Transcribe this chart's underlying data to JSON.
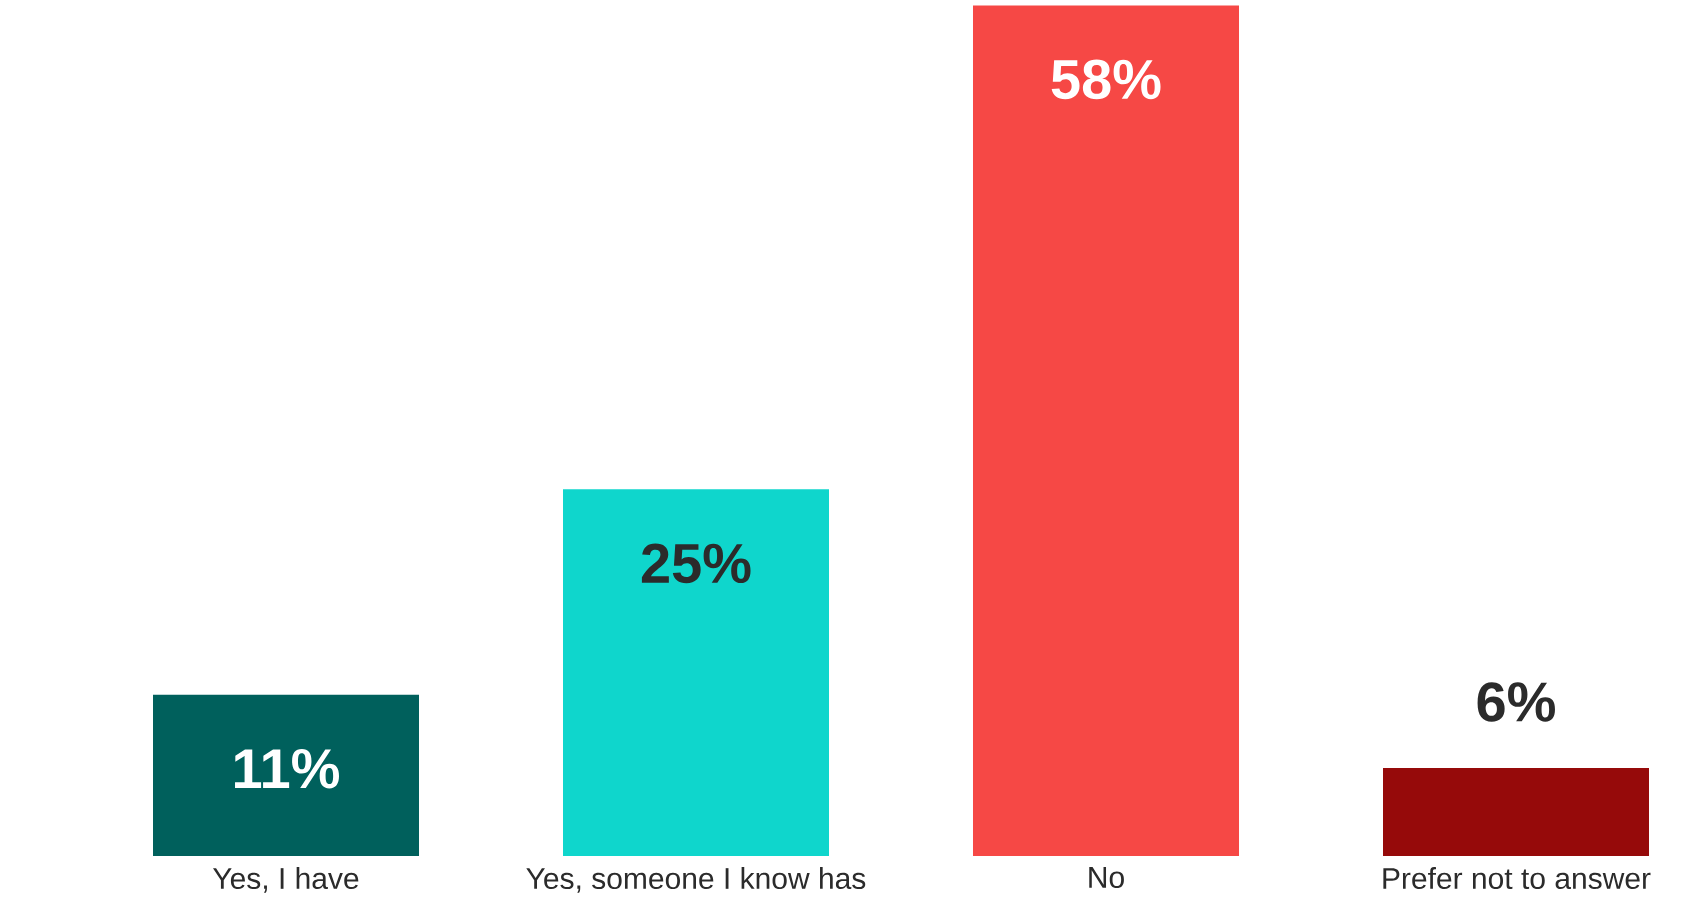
{
  "chart_data": {
    "type": "bar",
    "categories": [
      "Yes, I have",
      "Yes, someone I know has",
      "No",
      "Prefer not to answer"
    ],
    "values": [
      11,
      25,
      58,
      6
    ],
    "colors": [
      "#00605c",
      "#0fd6cc",
      "#f64845",
      "#960a0a"
    ],
    "value_labels": [
      "11%",
      "25%",
      "58%",
      "6%"
    ]
  }
}
